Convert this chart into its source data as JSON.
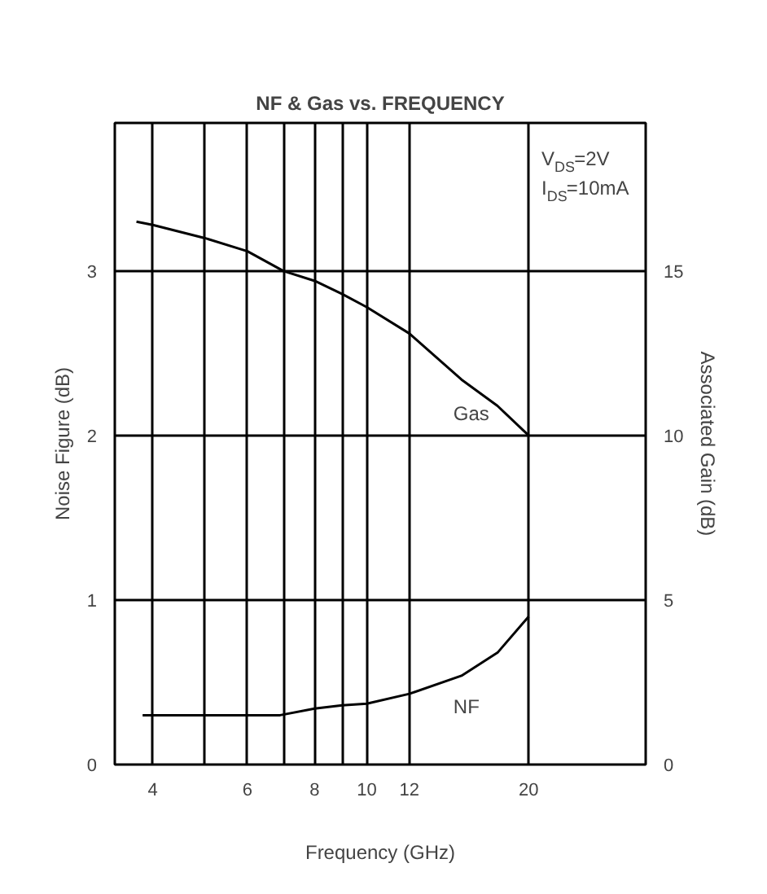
{
  "chart_data": {
    "type": "line",
    "title": "NF & Gas vs. FREQUENCY",
    "xlabel": "Frequency (GHz)",
    "ylabel": "Noise Figure (dB)",
    "y2label": "Associated Gain (dB)",
    "log": "x",
    "xlim": [
      3.4,
      33
    ],
    "xticks": [
      4,
      {
        "value": 5,
        "label": null
      },
      6,
      {
        "value": 7,
        "label": null
      },
      8,
      {
        "value": 9,
        "label": null
      },
      10,
      12,
      20
    ],
    "ylim": [
      0,
      3.9
    ],
    "yticks": [
      0,
      1,
      2,
      3
    ],
    "y2lim": [
      0,
      19.5
    ],
    "y2ticks": [
      0,
      5,
      10,
      15
    ],
    "grid": true,
    "series": [
      {
        "name": "Gas",
        "color": "#000000",
        "axis": "y2",
        "x": [
          3.73,
          4,
          5,
          6,
          7,
          8,
          9,
          10,
          12,
          15,
          17.5,
          20
        ],
        "values": [
          16.5,
          16.4,
          16.0,
          15.6,
          15.0,
          14.7,
          14.3,
          13.9,
          13.1,
          11.7,
          10.9,
          10.0
        ]
      },
      {
        "name": "NF",
        "color": "#000000",
        "x": [
          3.83,
          5,
          6,
          6.9,
          8,
          9,
          10,
          12,
          15,
          17.5,
          20
        ],
        "values": [
          0.3,
          0.3,
          0.3,
          0.3,
          0.34,
          0.36,
          0.37,
          0.43,
          0.54,
          0.68,
          0.9
        ]
      }
    ],
    "annotations": [
      "V$_{DS}$=2V",
      "I$_{DS}$=10mA"
    ]
  }
}
